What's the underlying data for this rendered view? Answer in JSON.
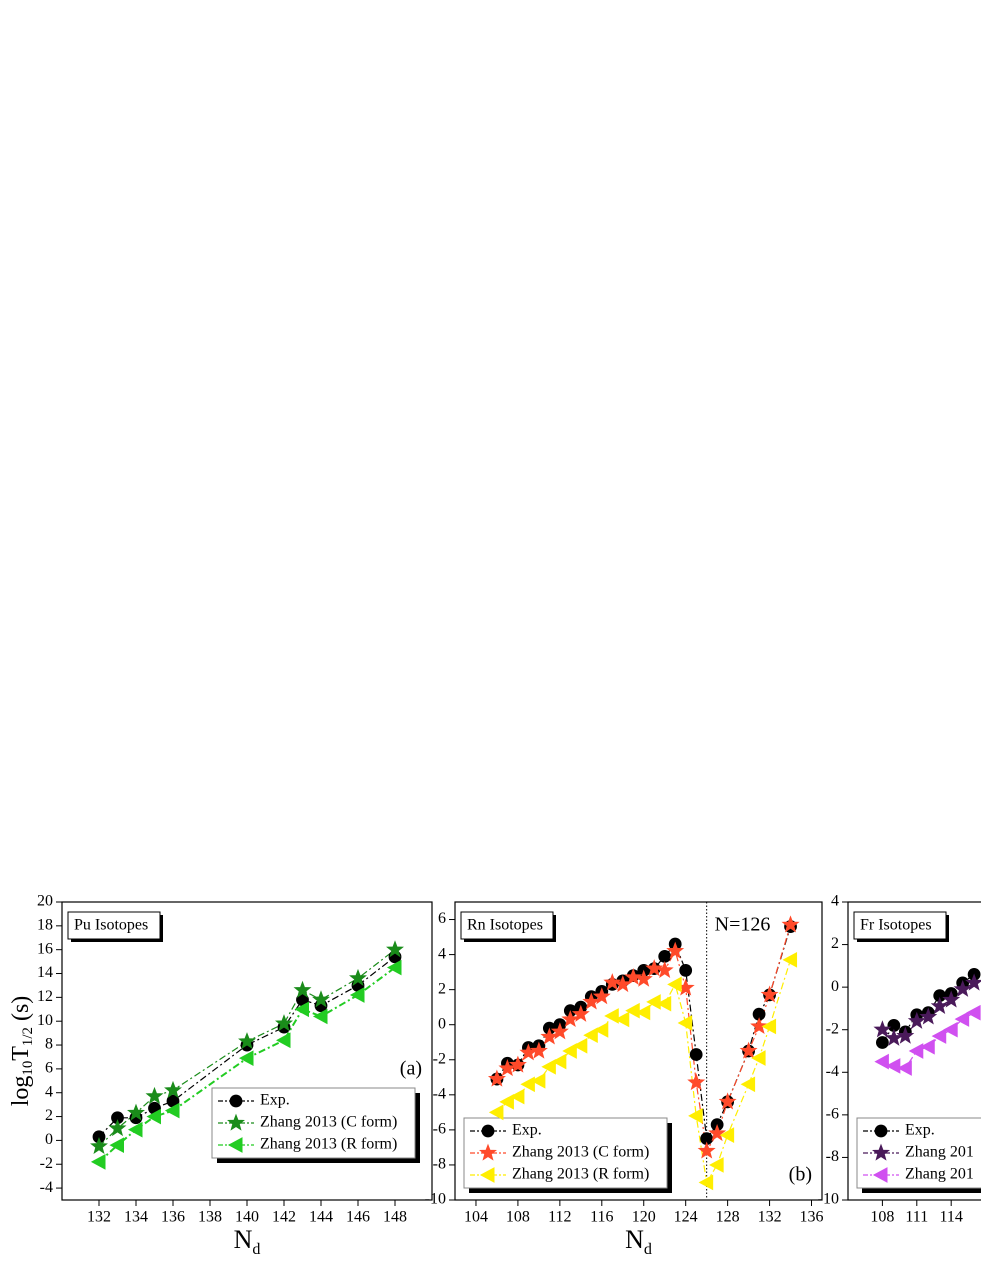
{
  "chart_data": [
    {
      "type": "line",
      "title": "Pu Isotopes",
      "panel_label": "(a)",
      "ylabel": [
        "log",
        "10",
        "T",
        "1/2",
        " (s)"
      ],
      "xlabel": [
        "N",
        "d"
      ],
      "xlim": [
        130,
        150
      ],
      "xticks": [
        132,
        134,
        136,
        138,
        140,
        142,
        144,
        146,
        148
      ],
      "ylim": [
        -5,
        20
      ],
      "yticks": [
        -4,
        -2,
        0,
        2,
        4,
        6,
        8,
        10,
        12,
        14,
        16,
        18,
        20
      ],
      "legend": "lower right",
      "x": [
        132,
        133,
        134,
        135,
        136,
        140,
        142,
        143,
        144,
        146,
        148
      ],
      "series": [
        {
          "name": "Exp.",
          "color": "#000000",
          "marker": "circle",
          "values": [
            0.3,
            1.9,
            1.9,
            2.7,
            3.3,
            8.0,
            9.5,
            11.8,
            11.3,
            13.0,
            15.4
          ]
        },
        {
          "name": "Zhang 2013 (C form)",
          "color": "#1a8c1a",
          "marker": "star",
          "values": [
            -0.5,
            1.0,
            2.3,
            3.7,
            4.2,
            8.3,
            9.8,
            12.6,
            11.8,
            13.6,
            16.0
          ]
        },
        {
          "name": "Zhang 2013 (R form)",
          "color": "#22cc22",
          "marker": "triangle-left",
          "values": [
            -1.8,
            -0.4,
            0.9,
            2.0,
            2.5,
            6.9,
            8.4,
            11.0,
            10.4,
            12.2,
            14.5
          ]
        }
      ]
    },
    {
      "type": "line",
      "title": "Rn Isotopes",
      "panel_label": "(b)",
      "xlabel": [
        "N",
        "d"
      ],
      "annotation": "N=126",
      "vline": 126,
      "xlim": [
        102,
        137
      ],
      "xticks": [
        104,
        108,
        112,
        116,
        120,
        124,
        128,
        132,
        136
      ],
      "ylim": [
        -10,
        7
      ],
      "yticks": [
        -10,
        -8,
        -6,
        -4,
        -2,
        0,
        2,
        4,
        6
      ],
      "legend": "lower left",
      "x": [
        106,
        107,
        108,
        109,
        110,
        111,
        112,
        113,
        114,
        115,
        116,
        117,
        118,
        119,
        120,
        121,
        122,
        123,
        124,
        125,
        126,
        127,
        128,
        130,
        131,
        132,
        134
      ],
      "series": [
        {
          "name": "Exp.",
          "color": "#000000",
          "marker": "circle",
          "values": [
            -3.1,
            -2.2,
            -2.3,
            -1.3,
            -1.2,
            -0.2,
            0.0,
            0.8,
            1.0,
            1.6,
            1.9,
            2.3,
            2.5,
            2.8,
            3.1,
            3.2,
            3.9,
            4.6,
            3.1,
            -1.7,
            -6.5,
            -5.7,
            -4.4,
            -1.5,
            0.6,
            1.7,
            5.6
          ]
        },
        {
          "name": "Zhang 2013 (C form)",
          "color": "#ff4a2a",
          "marker": "star",
          "values": [
            -3.1,
            -2.5,
            -2.3,
            -1.6,
            -1.5,
            -0.7,
            -0.4,
            0.3,
            0.6,
            1.3,
            1.6,
            2.4,
            2.3,
            2.7,
            2.6,
            3.2,
            3.1,
            4.2,
            2.1,
            -3.3,
            -7.2,
            -6.2,
            -4.4,
            -1.5,
            -0.1,
            1.7,
            5.7
          ]
        },
        {
          "name": "Zhang 2013 (R form)",
          "color": "#ffee00",
          "marker": "triangle-left",
          "values": [
            -5.0,
            -4.4,
            -4.1,
            -3.4,
            -3.2,
            -2.4,
            -2.1,
            -1.5,
            -1.2,
            -0.6,
            -0.3,
            0.5,
            0.3,
            0.8,
            0.7,
            1.3,
            1.2,
            2.3,
            0.1,
            -5.2,
            -9.0,
            -8.0,
            -6.3,
            -3.4,
            -1.9,
            -0.1,
            3.7
          ]
        }
      ]
    },
    {
      "type": "line",
      "title": "Fr Isotopes",
      "xlim": [
        105,
        116.6
      ],
      "xticks": [
        108,
        111,
        114
      ],
      "ylim": [
        -10,
        4
      ],
      "yticks": [
        -10,
        -8,
        -6,
        -4,
        -2,
        0,
        2,
        4
      ],
      "legend": "lower left",
      "x": [
        108,
        109,
        110,
        111,
        112,
        113,
        114,
        115,
        116
      ],
      "series": [
        {
          "name": "Exp.",
          "color": "#000000",
          "marker": "circle",
          "values": [
            -2.6,
            -1.8,
            -2.1,
            -1.3,
            -1.2,
            -0.4,
            -0.3,
            0.2,
            0.6
          ]
        },
        {
          "name": "Zhang 201",
          "color": "#4a1a5a",
          "marker": "star",
          "values": [
            -2.0,
            -2.4,
            -2.3,
            -1.6,
            -1.4,
            -0.9,
            -0.6,
            -0.1,
            0.2
          ]
        },
        {
          "name": "Zhang 201",
          "color": "#d050f0",
          "marker": "triangle-left",
          "values": [
            -3.5,
            -3.7,
            -3.8,
            -3.0,
            -2.8,
            -2.3,
            -2.0,
            -1.5,
            -1.2
          ]
        }
      ]
    }
  ]
}
